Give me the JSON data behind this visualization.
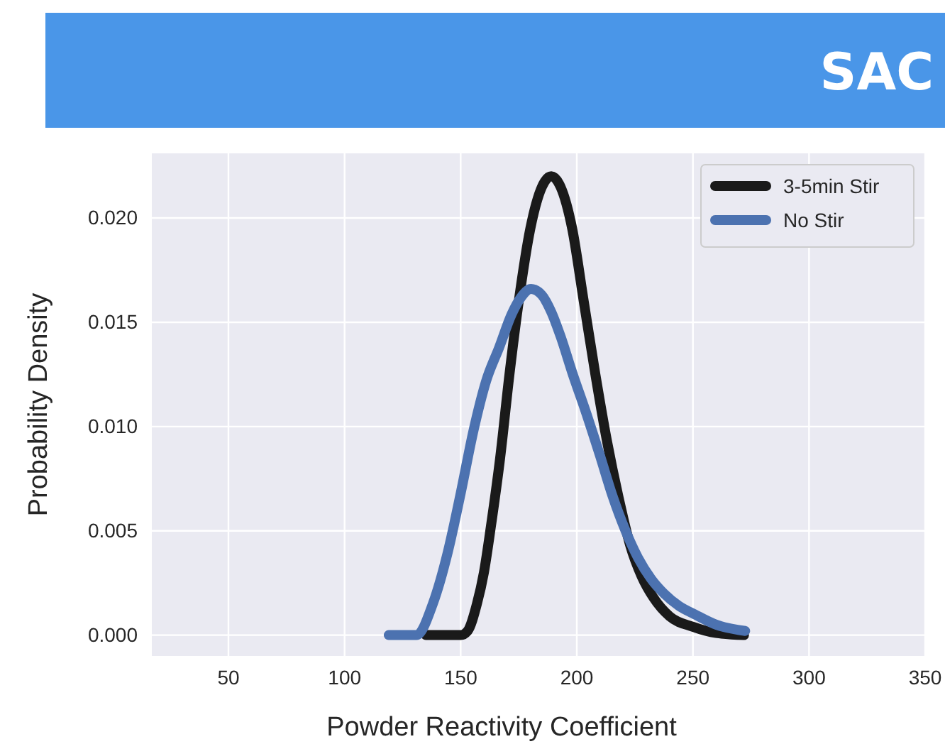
{
  "chart_data": {
    "type": "line",
    "title": "SAC",
    "xlabel": "Powder Reactivity Coefficient",
    "ylabel": "Probability Density",
    "xlim": [
      17,
      350
    ],
    "xticks": [
      50,
      100,
      150,
      200,
      250,
      300,
      350
    ],
    "ylim": [
      -0.001,
      0.0231
    ],
    "yticks": [
      {
        "value": 0,
        "label": "0.000"
      },
      {
        "value": 0.005,
        "label": "0.005"
      },
      {
        "value": 0.01,
        "label": "0.010"
      },
      {
        "value": 0.015,
        "label": "0.015"
      },
      {
        "value": 0.02,
        "label": "0.020"
      }
    ],
    "grid": true,
    "legend": "top right",
    "marker": "none",
    "line_style": "solid",
    "series": [
      {
        "name": "3-5min Stir",
        "color": "#1a1a1a",
        "x": [
          135,
          150,
          153,
          157,
          160,
          163,
          167,
          171,
          175,
          180,
          185,
          189,
          193,
          198,
          203,
          208,
          213,
          218,
          223,
          228,
          233,
          240,
          250,
          260,
          272
        ],
        "values": [
          0,
          0,
          0.0002,
          0.0015,
          0.003,
          0.0052,
          0.0085,
          0.0125,
          0.016,
          0.0195,
          0.0215,
          0.022,
          0.0215,
          0.0195,
          0.016,
          0.0125,
          0.0093,
          0.0066,
          0.0043,
          0.0028,
          0.0018,
          0.0009,
          0.0004,
          0.0001,
          0
        ]
      },
      {
        "name": "No Stir",
        "color": "#4c72b0",
        "x": [
          119,
          131,
          138,
          144.5,
          150,
          155.5,
          161,
          166.6,
          172,
          176,
          180.3,
          185,
          189,
          193.1,
          198,
          204.2,
          210,
          215.3,
          221,
          226.4,
          232,
          237.5,
          244,
          250.7,
          260,
          272.5
        ],
        "values": [
          0,
          0,
          0.0015,
          0.004,
          0.0068,
          0.0098,
          0.0122,
          0.0138,
          0.0154,
          0.0162,
          0.0166,
          0.0163,
          0.0155,
          0.0143,
          0.0126,
          0.0106,
          0.0086,
          0.0067,
          0.005,
          0.0037,
          0.0027,
          0.002,
          0.0014,
          0.001,
          0.0005,
          0.0002
        ]
      }
    ]
  }
}
